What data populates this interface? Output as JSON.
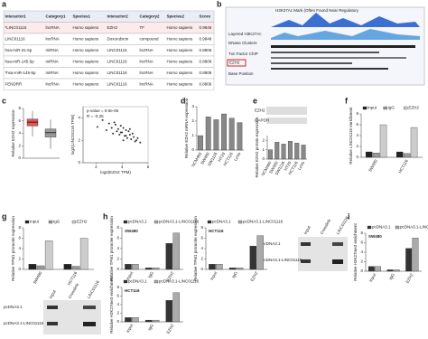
{
  "panels": [
    "a",
    "b",
    "c",
    "d",
    "e",
    "f",
    "g",
    "h",
    "i"
  ],
  "table": {
    "header": [
      "Interactor1",
      "Category1",
      "Species1",
      "Interactor2",
      "Category2",
      "Species2",
      "Score"
    ],
    "rows": [
      [
        "*LINC01116",
        "lncRNA",
        "Homo sapiens",
        "EZH2",
        "TF",
        "Homo sapiens",
        "0.9846"
      ],
      [
        "LINC01116",
        "lncRNA",
        "Homo sapiens",
        "Doxorubicin",
        "compound",
        "Homo sapiens",
        "0.9848"
      ],
      [
        "hsa-miR-31-5p",
        "miRNA",
        "Homo sapiens",
        "LINC01116",
        "lncRNA",
        "Homo sapiens",
        "0.8806"
      ],
      [
        "hsa-miR-145-5p",
        "miRNA",
        "Homo sapiens",
        "LINC01116",
        "lncRNA",
        "Homo sapiens",
        "0.8808"
      ],
      [
        "*hsa-miR-145-5p",
        "miRNA",
        "Homo sapiens",
        "LINC01116",
        "lncRNA",
        "Homo sapiens",
        "0.8808"
      ],
      [
        "FENDRR",
        "lncRNA",
        "Homo sapiens",
        "LINC01116",
        "lncRNA",
        "Homo sapiens",
        "0.8806"
      ]
    ]
  },
  "browser": {
    "labels": [
      "H3K27Ac Mark (Often Found Near Regulatory",
      "Layered H3K27Ac",
      "DNase Clusters",
      "Txn Factor ChIP",
      "EZH2",
      "Base Position"
    ]
  },
  "blots": {
    "e": {
      "rows": [
        "EZH2",
        "GAPDH"
      ]
    },
    "g": {
      "rows": [
        "pcDNA3.1",
        "pcDNA3.1-LINC01116"
      ],
      "columns": [
        "Input",
        "Crosslink",
        "LINC01116"
      ]
    },
    "i": {
      "rows": [
        "pcDNA3.1",
        "pcDNA3.1-LINC01116"
      ],
      "columns": [
        "Input",
        "Crosslink",
        "LINC01116"
      ]
    }
  },
  "chart_data": [
    {
      "type": "scatter",
      "xlabel": "log2(EZH2 TPM)",
      "ylabel": "log2(LINC01116 TPM)",
      "annotations": [
        "p-value = 9.9e-06",
        "R = -0.25"
      ],
      "x": [
        2.1,
        2.5,
        2.8,
        3.0,
        3.2,
        3.3,
        3.5,
        3.6,
        3.7,
        3.8,
        3.9,
        4.0,
        4.1,
        4.2,
        4.3,
        4.4,
        4.5,
        4.6,
        4.7,
        4.8,
        4.9,
        5.0,
        5.2,
        5.4,
        3.4,
        4.1,
        4.6,
        3.9,
        4.3,
        5.1
      ],
      "y": [
        3.2,
        3.8,
        2.9,
        3.5,
        3.1,
        2.6,
        3.4,
        2.8,
        3.0,
        2.5,
        3.3,
        2.7,
        3.1,
        2.4,
        2.9,
        2.2,
        2.8,
        2.5,
        2.1,
        2.6,
        2.3,
        1.9,
        2.2,
        1.8,
        3.6,
        2.0,
        3.0,
        2.7,
        2.4,
        2.0
      ],
      "color": "#333333",
      "xlim": [
        1,
        6
      ],
      "ylim": [
        0,
        5
      ],
      "xticks": [
        2,
        4,
        6
      ],
      "yticks": [
        0,
        2,
        4
      ]
    },
    {
      "type": "bar",
      "ylabel": "Relative EZH2 mRNA expression",
      "categories": [
        "NCM460",
        "SW480",
        "SW1116",
        "HT29",
        "HCT116",
        "LoVo"
      ],
      "values": [
        1,
        2.3,
        2.1,
        2.5,
        2.2,
        1.9
      ],
      "color": "#888888",
      "ylim": [
        0,
        3
      ],
      "yticks": [
        0,
        1,
        2,
        3
      ]
    },
    {
      "type": "bar",
      "ylabel": "Relative EZH2 protein expression",
      "categories": [
        "NCM460",
        "SW480",
        "SW1116",
        "HT29",
        "HCT116",
        "LoVo"
      ],
      "values": [
        1,
        1.8,
        1.6,
        1.9,
        1.7,
        1.5
      ],
      "color": "#888888",
      "ylim": [
        0,
        2.5
      ],
      "yticks": [
        0,
        1,
        2
      ]
    },
    {
      "type": "bar",
      "ylabel": "Relative LINC01116 enrichment",
      "categories": [
        "SW480",
        "HCT116"
      ],
      "series": [
        {
          "name": "Input",
          "color": "#222222",
          "values": [
            1,
            1
          ]
        },
        {
          "name": "IgG",
          "color": "#999999",
          "values": [
            0.8,
            0.7
          ]
        },
        {
          "name": "EZH2",
          "color": "#cccccc",
          "values": [
            6,
            5.5
          ]
        }
      ],
      "ylim": [
        0,
        8
      ],
      "yticks": [
        0,
        2,
        4,
        6,
        8
      ]
    },
    {
      "type": "bar",
      "ylabel": "Relative TPM1 promoter expression",
      "categories": [
        "SW480",
        "HCT116"
      ],
      "series": [
        {
          "name": "Input",
          "color": "#222222",
          "values": [
            1,
            1
          ]
        },
        {
          "name": "IgG",
          "color": "#999999",
          "values": [
            0.7,
            0.6
          ]
        },
        {
          "name": "EZH2",
          "color": "#cccccc",
          "values": [
            5.5,
            6
          ]
        }
      ],
      "ylim": [
        0,
        8
      ],
      "yticks": [
        0,
        2,
        4,
        6,
        8
      ]
    },
    {
      "type": "bar",
      "title": "SW480",
      "ylabel": "Relative TPM1 promoter expression",
      "categories": [
        "Input",
        "IgG",
        "EZH2"
      ],
      "series": [
        {
          "name": "pcDNA3.1",
          "color": "#333333",
          "values": [
            1,
            0.3,
            5
          ]
        },
        {
          "name": "pcDNA3.1-LINC01116",
          "color": "#aaaaaa",
          "values": [
            1,
            0.3,
            7
          ]
        }
      ],
      "ylim": [
        0,
        8
      ],
      "yticks": [
        0,
        2,
        4,
        6,
        8
      ]
    },
    {
      "type": "bar",
      "title": "HCT116",
      "ylabel": "Relative TPM1 promoter expression",
      "categories": [
        "Input",
        "IgG",
        "EZH2"
      ],
      "series": [
        {
          "name": "pcDNA3.1",
          "color": "#333333",
          "values": [
            1,
            0.3,
            4.5
          ]
        },
        {
          "name": "pcDNA3.1-LINC01116",
          "color": "#aaaaaa",
          "values": [
            1,
            0.3,
            6.5
          ]
        }
      ],
      "ylim": [
        0,
        8
      ],
      "yticks": [
        0,
        2,
        4,
        6,
        8
      ]
    },
    {
      "type": "bar",
      "title": "HCT116",
      "ylabel": "Relative H3K27me3 enrichment",
      "categories": [
        "Input",
        "IgG",
        "EZH2"
      ],
      "series": [
        {
          "name": "pcDNA3.1",
          "color": "#333333",
          "values": [
            1,
            0.4,
            5
          ]
        },
        {
          "name": "pcDNA3.1-LINC01116",
          "color": "#aaaaaa",
          "values": [
            1,
            0.4,
            6.8
          ]
        }
      ],
      "ylim": [
        0,
        8
      ],
      "yticks": [
        0,
        2,
        4,
        6,
        8
      ]
    },
    {
      "type": "bar",
      "title": "SW480",
      "ylabel": "Relative H3K27me3 enrichment",
      "categories": [
        "Input",
        "IgG",
        "EZH2"
      ],
      "series": [
        {
          "name": "pcDNA3.1",
          "color": "#333333",
          "values": [
            1,
            0.3,
            4.8
          ]
        },
        {
          "name": "pcDNA3.1-LINC01116",
          "color": "#aaaaaa",
          "values": [
            1,
            0.3,
            7
          ]
        }
      ],
      "ylim": [
        0,
        8
      ],
      "yticks": [
        0,
        2,
        4,
        6,
        8
      ]
    },
    {
      "type": "box",
      "ylabel": "Relative EZH2 expression",
      "categories": [
        null,
        null
      ],
      "boxes": [
        {
          "min": 3.5,
          "q1": 5.2,
          "median": 5.8,
          "q3": 6.3,
          "max": 7.6
        },
        {
          "min": 1.5,
          "q1": 3.4,
          "median": 4.1,
          "q3": 4.7,
          "max": 6.2
        }
      ],
      "colors": [
        "#e05555",
        "#999999"
      ],
      "ylim": [
        0,
        8
      ],
      "yticks": [
        0,
        2,
        4,
        6,
        8
      ]
    }
  ]
}
